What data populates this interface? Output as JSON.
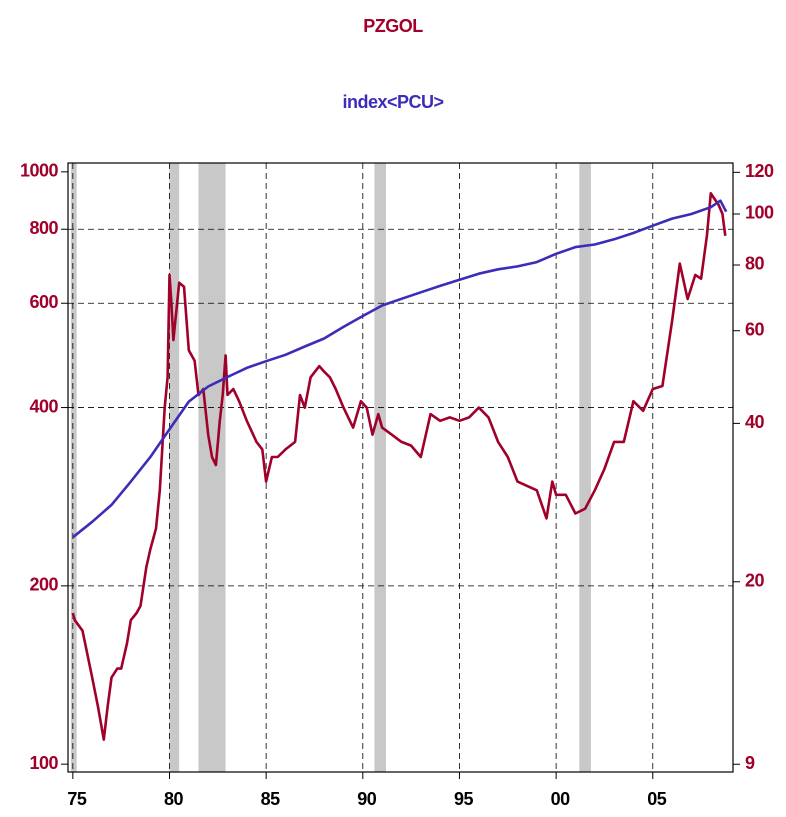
{
  "chart_data": {
    "type": "line",
    "log_scale": true,
    "grid": true,
    "xlim": [
      1974.75,
      2009.15
    ],
    "xticks": [
      {
        "value": 1975,
        "label": "75"
      },
      {
        "value": 1980,
        "label": "80"
      },
      {
        "value": 1985,
        "label": "85"
      },
      {
        "value": 1990,
        "label": "90"
      },
      {
        "value": 1995,
        "label": "95"
      },
      {
        "value": 2000,
        "label": "00"
      },
      {
        "value": 2005,
        "label": "05"
      }
    ],
    "ylim": [
      97,
      1035
    ],
    "yticks": [
      100,
      200,
      400,
      600,
      800,
      1000
    ],
    "y2lim": [
      8.7,
      125
    ],
    "y2ticks": [
      9,
      20,
      40,
      60,
      80,
      100,
      120
    ],
    "axis_color": "#a0002a",
    "shade_color": "#c8c8c8",
    "shaded_periods": [
      [
        1974.9,
        1975.2
      ],
      [
        1980.0,
        1980.5
      ],
      [
        1981.5,
        1982.9
      ],
      [
        1990.6,
        1991.2
      ],
      [
        2001.2,
        2001.8
      ]
    ],
    "series": [
      {
        "name": "PZGOL",
        "color": "#a0002a",
        "x": [
          1975.0,
          1975.1,
          1975.5,
          1976.0,
          1976.3,
          1976.6,
          1976.8,
          1977.0,
          1977.3,
          1977.5,
          1977.8,
          1978.0,
          1978.3,
          1978.5,
          1978.8,
          1979.0,
          1979.3,
          1979.5,
          1979.75,
          1979.9,
          1980.0,
          1980.1,
          1980.2,
          1980.3,
          1980.5,
          1980.75,
          1981.0,
          1981.3,
          1981.5,
          1981.75,
          1982.0,
          1982.2,
          1982.4,
          1982.6,
          1982.75,
          1982.9,
          1983.0,
          1983.3,
          1983.6,
          1984.0,
          1984.5,
          1984.8,
          1985.0,
          1985.3,
          1985.6,
          1986.0,
          1986.5,
          1986.75,
          1987.0,
          1987.3,
          1987.75,
          1988.0,
          1988.3,
          1988.6,
          1989.0,
          1989.5,
          1989.9,
          1990.2,
          1990.5,
          1990.8,
          1991.0,
          1991.5,
          1992.0,
          1992.5,
          1993.0,
          1993.5,
          1994.0,
          1994.5,
          1995.0,
          1995.5,
          1996.0,
          1996.5,
          1997.0,
          1997.5,
          1998.0,
          1998.5,
          1999.0,
          1999.5,
          1999.8,
          2000.0,
          2000.5,
          2001.0,
          2001.5,
          2002.0,
          2002.5,
          2003.0,
          2003.5,
          2004.0,
          2004.5,
          2005.0,
          2005.5,
          2006.0,
          2006.4,
          2006.8,
          2007.2,
          2007.5,
          2007.8,
          2008.0,
          2008.2,
          2008.4,
          2008.6,
          2008.75
        ],
        "values": [
          180,
          175,
          168,
          140,
          125,
          110,
          125,
          140,
          145,
          145,
          160,
          175,
          180,
          185,
          215,
          230,
          250,
          290,
          400,
          450,
          670,
          600,
          520,
          560,
          650,
          640,
          500,
          480,
          420,
          430,
          360,
          330,
          320,
          380,
          420,
          490,
          420,
          430,
          410,
          380,
          350,
          340,
          300,
          330,
          330,
          340,
          350,
          420,
          400,
          450,
          470,
          460,
          450,
          430,
          400,
          370,
          410,
          400,
          360,
          390,
          370,
          360,
          350,
          345,
          330,
          390,
          380,
          385,
          380,
          385,
          400,
          385,
          350,
          330,
          300,
          295,
          290,
          260,
          300,
          285,
          285,
          265,
          270,
          290,
          315,
          350,
          350,
          410,
          395,
          430,
          435,
          560,
          700,
          610,
          670,
          660,
          780,
          920,
          900,
          880,
          850,
          780
        ]
      },
      {
        "name": "index<PCU>",
        "color": "#3b2db8",
        "axis": "y2",
        "x": [
          1975,
          1976,
          1977,
          1978,
          1979,
          1980,
          1981,
          1982,
          1983,
          1984,
          1985,
          1986,
          1987,
          1988,
          1989,
          1990,
          1991,
          1992,
          1993,
          1994,
          1995,
          1996,
          1997,
          1998,
          1999,
          2000,
          2001,
          2002,
          2003,
          2004,
          2005,
          2006,
          2007,
          2008,
          2008.5,
          2008.8
        ],
        "values": [
          24.3,
          26,
          28,
          31,
          34.5,
          39,
          44,
          47,
          49,
          51,
          52.5,
          54,
          56,
          58,
          61,
          64,
          67,
          69,
          71,
          73,
          75,
          77,
          78.5,
          79.5,
          81,
          84,
          86.5,
          87.5,
          89.5,
          92,
          95,
          98,
          100,
          103,
          106,
          101
        ]
      }
    ]
  }
}
